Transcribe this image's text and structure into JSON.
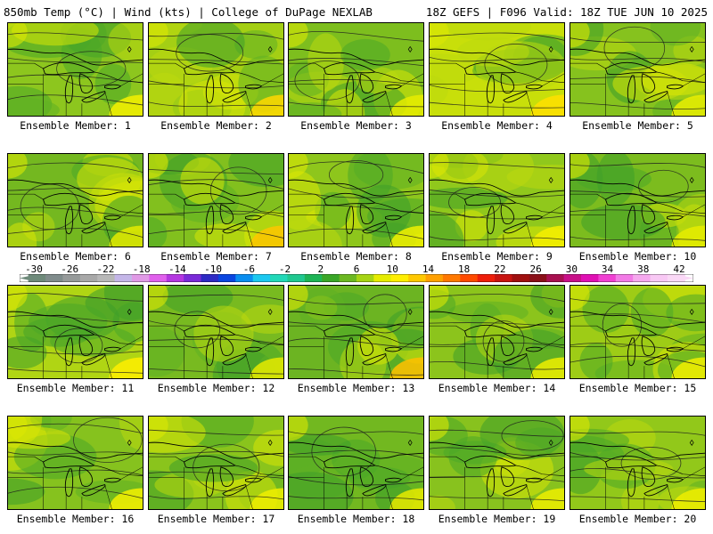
{
  "header": {
    "left": "850mb Temp (°C) | Wind (kts) | College of DuPage NEXLAB",
    "right": "18Z GEFS | F096 Valid: 18Z TUE JUN 10 2025"
  },
  "panels": [
    {
      "label": "Ensemble Member: 1",
      "base": "#8dc61e",
      "warm_corner": "#f4f000"
    },
    {
      "label": "Ensemble Member: 2",
      "base": "#a4cf14",
      "warm_corner": "#ffd800"
    },
    {
      "label": "Ensemble Member: 3",
      "base": "#7dbe1e",
      "warm_corner": "#e8ec00"
    },
    {
      "label": "Ensemble Member: 4",
      "base": "#c8df0a",
      "warm_corner": "#ffe000"
    },
    {
      "label": "Ensemble Member: 5",
      "base": "#86c21e",
      "warm_corner": "#ecef00"
    },
    {
      "label": "Ensemble Member: 6",
      "base": "#74b820",
      "warm_corner": "#e4ea00"
    },
    {
      "label": "Ensemble Member: 7",
      "base": "#82c01e",
      "warm_corner": "#ffc600"
    },
    {
      "label": "Ensemble Member: 8",
      "base": "#8ec61c",
      "warm_corner": "#f2f000"
    },
    {
      "label": "Ensemble Member: 9",
      "base": "#90c81c",
      "warm_corner": "#f6f000"
    },
    {
      "label": "Ensemble Member: 10",
      "base": "#7cbc1e",
      "warm_corner": "#e6ec00"
    },
    {
      "label": "Ensemble Member: 11",
      "base": "#b0d514",
      "warm_corner": "#ffee00"
    },
    {
      "label": "Ensemble Member: 12",
      "base": "#78ba20",
      "warm_corner": "#e6ea00"
    },
    {
      "label": "Ensemble Member: 13",
      "base": "#6cb422",
      "warm_corner": "#ffc000"
    },
    {
      "label": "Ensemble Member: 14",
      "base": "#8cc41c",
      "warm_corner": "#f0ee00"
    },
    {
      "label": "Ensemble Member: 15",
      "base": "#9ecc16",
      "warm_corner": "#f2f000"
    },
    {
      "label": "Ensemble Member: 16",
      "base": "#86c21e",
      "warm_corner": "#f4f000"
    },
    {
      "label": "Ensemble Member: 17",
      "base": "#8ac41c",
      "warm_corner": "#f0ee00"
    },
    {
      "label": "Ensemble Member: 18",
      "base": "#72b820",
      "warm_corner": "#e8ea00"
    },
    {
      "label": "Ensemble Member: 19",
      "base": "#88c21e",
      "warm_corner": "#eeee00"
    },
    {
      "label": "Ensemble Member: 20",
      "base": "#92c81a",
      "warm_corner": "#f0ee00"
    }
  ],
  "colorbar": {
    "labels": [
      "-30",
      "-26",
      "-22",
      "-18",
      "-14",
      "-10",
      "-6",
      "-2",
      "2",
      "6",
      "10",
      "14",
      "18",
      "22",
      "26",
      "30",
      "34",
      "38",
      "42"
    ],
    "colors": [
      "#6e8a7a",
      "#808c8c",
      "#969a9a",
      "#a8a8a8",
      "#b8b8b8",
      "#c4b6e8",
      "#e09ae6",
      "#e060ec",
      "#b436e0",
      "#7a2ad8",
      "#2e2ac4",
      "#0a46e0",
      "#0a8ef0",
      "#1cc8f0",
      "#22d8b8",
      "#20c890",
      "#1eb456",
      "#3aa628",
      "#6cb822",
      "#a6d414",
      "#e6ec00",
      "#ffee00",
      "#ffc800",
      "#ffa000",
      "#ff7800",
      "#ff4a00",
      "#ee1e0a",
      "#c81410",
      "#a01010",
      "#8a1018",
      "#a81050",
      "#c81088",
      "#e010b4",
      "#f040d2",
      "#f27ae6",
      "#f6a8ee",
      "#f8c8f4",
      "#fad8f6"
    ]
  }
}
